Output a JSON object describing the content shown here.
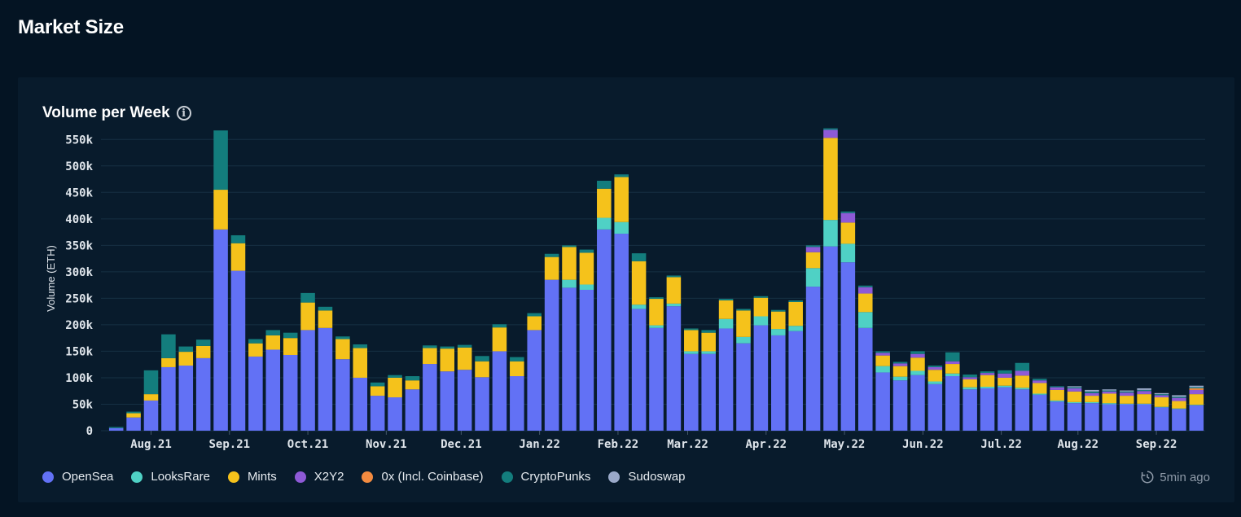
{
  "page": {
    "title": "Market Size"
  },
  "card": {
    "title": "Volume per Week",
    "info_icon": "info-icon"
  },
  "status": {
    "updated": "5min ago",
    "icon": "clock-refresh-icon"
  },
  "colors": {
    "background": "#041423",
    "card": "#081b2c",
    "grid": "#163043",
    "axis_text": "#dfe5eb"
  },
  "chart_data": {
    "type": "bar",
    "stacked": true,
    "ylabel": "Volume (ETH)",
    "xlabel": "",
    "ylim": [
      0,
      575000
    ],
    "yticks": [
      0,
      50000,
      100000,
      150000,
      200000,
      250000,
      300000,
      350000,
      400000,
      450000,
      500000,
      550000
    ],
    "ytick_labels": [
      "0",
      "50k",
      "100k",
      "150k",
      "200k",
      "250k",
      "300k",
      "350k",
      "400k",
      "450k",
      "500k",
      "550k"
    ],
    "xtick_labels": [
      {
        "label": "Aug.21",
        "at_bar": 2
      },
      {
        "label": "Sep.21",
        "at_bar": 6.5
      },
      {
        "label": "Oct.21",
        "at_bar": 11
      },
      {
        "label": "Nov.21",
        "at_bar": 15.5
      },
      {
        "label": "Dec.21",
        "at_bar": 19.8
      },
      {
        "label": "Jan.22",
        "at_bar": 24.3
      },
      {
        "label": "Feb.22",
        "at_bar": 28.8
      },
      {
        "label": "Mar.22",
        "at_bar": 32.8
      },
      {
        "label": "Apr.22",
        "at_bar": 37.3
      },
      {
        "label": "May.22",
        "at_bar": 41.8
      },
      {
        "label": "Jun.22",
        "at_bar": 46.3
      },
      {
        "label": "Jul.22",
        "at_bar": 50.8
      },
      {
        "label": "Aug.22",
        "at_bar": 55.2
      },
      {
        "label": "Sep.22",
        "at_bar": 59.7
      }
    ],
    "grid": true,
    "legend_position": "bottom-left",
    "series": [
      {
        "name": "OpenSea",
        "color": "#6271f5",
        "values": [
          5000,
          25000,
          57000,
          120000,
          123000,
          137000,
          380000,
          302000,
          140000,
          153000,
          143000,
          190000,
          194000,
          135000,
          100000,
          66000,
          63000,
          78000,
          126000,
          112000,
          115000,
          101000,
          150000,
          103000,
          190000,
          285000,
          270000,
          266000,
          380000,
          372000,
          230000,
          194000,
          235000,
          145000,
          145000,
          193000,
          165000,
          199000,
          180000,
          188000,
          272000,
          348000,
          318000,
          194000,
          110000,
          95000,
          105000,
          88000,
          103000,
          78000,
          80000,
          82000,
          78000,
          68000,
          55000,
          52000,
          52000,
          50000,
          50000,
          50000,
          44000,
          41000,
          48000
        ]
      },
      {
        "name": "LooksRare",
        "color": "#4fd1c5",
        "values": [
          0,
          0,
          0,
          0,
          0,
          0,
          0,
          0,
          0,
          0,
          0,
          0,
          0,
          0,
          0,
          0,
          0,
          0,
          0,
          0,
          0,
          0,
          0,
          0,
          0,
          0,
          15000,
          10000,
          22000,
          22000,
          8000,
          5000,
          5000,
          5000,
          5000,
          18000,
          12000,
          17000,
          12000,
          10000,
          35000,
          50000,
          35000,
          30000,
          12000,
          7000,
          8000,
          5000,
          5000,
          4000,
          3000,
          3000,
          3000,
          2000,
          2000,
          2000,
          2000,
          2000,
          1000,
          1000,
          1000,
          1000,
          1000
        ]
      },
      {
        "name": "Mints",
        "color": "#f5c21b",
        "values": [
          0,
          8000,
          12000,
          17000,
          26000,
          23000,
          75000,
          52000,
          25000,
          27000,
          32000,
          52000,
          33000,
          38000,
          56000,
          18000,
          37000,
          17000,
          30000,
          43000,
          42000,
          30000,
          45000,
          28000,
          26000,
          43000,
          62000,
          60000,
          55000,
          85000,
          82000,
          50000,
          50000,
          40000,
          35000,
          35000,
          50000,
          35000,
          33000,
          45000,
          30000,
          155000,
          40000,
          35000,
          20000,
          20000,
          25000,
          22000,
          18000,
          15000,
          22000,
          15000,
          23000,
          20000,
          20000,
          20000,
          12000,
          18000,
          15000,
          18000,
          18000,
          14000,
          20000
        ]
      },
      {
        "name": "X2Y2",
        "color": "#8e5ad7",
        "values": [
          0,
          0,
          0,
          0,
          0,
          0,
          0,
          0,
          0,
          0,
          0,
          0,
          0,
          0,
          0,
          0,
          0,
          0,
          0,
          0,
          0,
          0,
          0,
          0,
          0,
          0,
          0,
          0,
          0,
          0,
          0,
          0,
          0,
          0,
          0,
          0,
          0,
          0,
          0,
          0,
          10000,
          15000,
          18000,
          12000,
          5000,
          5000,
          7000,
          5000,
          5000,
          4000,
          4000,
          8000,
          9000,
          5000,
          5000,
          6000,
          5000,
          4000,
          6000,
          6000,
          4000,
          6000,
          8000
        ]
      },
      {
        "name": "0x (Incl. Coinbase)",
        "color": "#f38b40",
        "values": [
          0,
          0,
          0,
          0,
          0,
          0,
          0,
          0,
          0,
          0,
          0,
          0,
          0,
          0,
          0,
          0,
          0,
          0,
          0,
          0,
          0,
          0,
          0,
          0,
          0,
          0,
          0,
          0,
          0,
          0,
          0,
          0,
          0,
          0,
          0,
          0,
          0,
          0,
          0,
          0,
          0,
          0,
          0,
          0,
          0,
          0,
          0,
          0,
          0,
          0,
          0,
          0,
          0,
          0,
          0,
          0,
          0,
          0,
          0,
          0,
          0,
          0,
          3000
        ]
      },
      {
        "name": "CryptoPunks",
        "color": "#137d7d",
        "values": [
          2000,
          3000,
          45000,
          45000,
          10000,
          12000,
          112000,
          15000,
          8000,
          10000,
          10000,
          18000,
          7000,
          5000,
          7000,
          7000,
          5000,
          8000,
          5000,
          4000,
          5000,
          10000,
          6000,
          8000,
          6000,
          6000,
          3000,
          6000,
          15000,
          5000,
          15000,
          3000,
          3000,
          3000,
          5000,
          3000,
          3000,
          3000,
          3000,
          3000,
          3000,
          3000,
          3000,
          3000,
          3000,
          3000,
          5000,
          3000,
          17000,
          5000,
          3000,
          6000,
          15000,
          3000,
          2000,
          2000,
          3000,
          2000,
          2000,
          2000,
          2000,
          2000,
          2000
        ]
      },
      {
        "name": "Sudoswap",
        "color": "#9aa9c9",
        "values": [
          0,
          0,
          0,
          0,
          0,
          0,
          0,
          0,
          0,
          0,
          0,
          0,
          0,
          0,
          0,
          0,
          0,
          0,
          0,
          0,
          0,
          0,
          0,
          0,
          0,
          0,
          0,
          0,
          0,
          0,
          0,
          0,
          0,
          0,
          0,
          0,
          0,
          0,
          0,
          0,
          0,
          0,
          0,
          0,
          0,
          0,
          0,
          0,
          0,
          0,
          0,
          0,
          0,
          0,
          0,
          2000,
          3000,
          2000,
          2000,
          3000,
          2000,
          3000,
          3000
        ]
      }
    ]
  }
}
